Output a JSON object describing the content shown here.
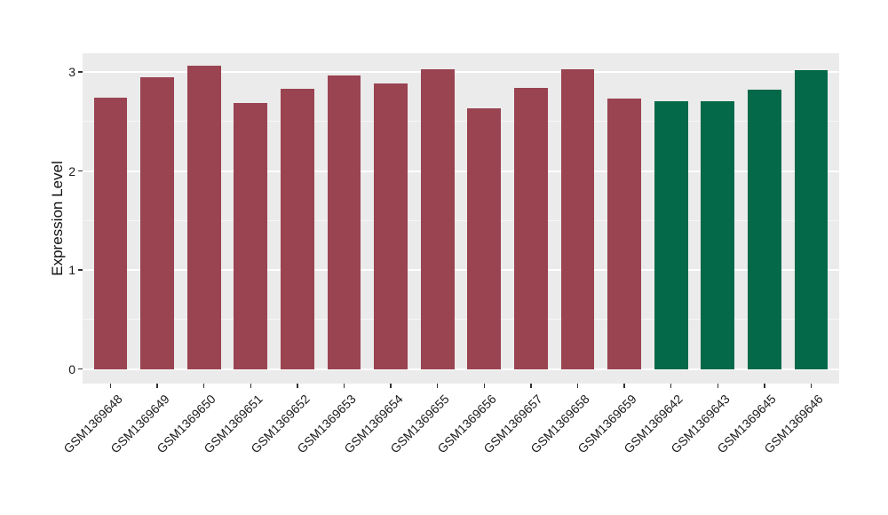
{
  "figure": {
    "kind": "ggplot-style bar chart",
    "background_color": "#FFFFFF",
    "panel_background_color": "#EBEBEB",
    "gridline_color": "#FFFFFF",
    "axis_text_color": "#1A1A1A"
  },
  "chart_data": {
    "type": "bar",
    "title": "",
    "xlabel": "",
    "ylabel": "Expression Level",
    "categories": [
      "GSM1369648",
      "GSM1369649",
      "GSM1369650",
      "GSM1369651",
      "GSM1369652",
      "GSM1369653",
      "GSM1369654",
      "GSM1369655",
      "GSM1369656",
      "GSM1369657",
      "GSM1369658",
      "GSM1369659",
      "GSM1369642",
      "GSM1369643",
      "GSM1369645",
      "GSM1369646"
    ],
    "values": [
      2.74,
      2.95,
      3.06,
      2.69,
      2.83,
      2.96,
      2.88,
      3.03,
      2.63,
      2.84,
      3.03,
      2.73,
      2.7,
      2.7,
      2.82,
      3.02
    ],
    "bar_colors": [
      "#9A4351",
      "#9A4351",
      "#9A4351",
      "#9A4351",
      "#9A4351",
      "#9A4351",
      "#9A4351",
      "#9A4351",
      "#9A4351",
      "#9A4351",
      "#9A4351",
      "#9A4351",
      "#046949",
      "#046949",
      "#046949",
      "#046949"
    ],
    "group_colors": {
      "maroon_group": "#9A4351",
      "green_group": "#046949"
    },
    "yticks": [
      0,
      1,
      2,
      3
    ],
    "ytick_labels": [
      "0",
      "1",
      "2",
      "3"
    ],
    "minor_gridlines": [
      0.5,
      1.5,
      2.5
    ],
    "ylim": [
      -0.15,
      3.19
    ],
    "grid": true,
    "legend_position": "none",
    "x_label_rotation_deg": 45
  }
}
